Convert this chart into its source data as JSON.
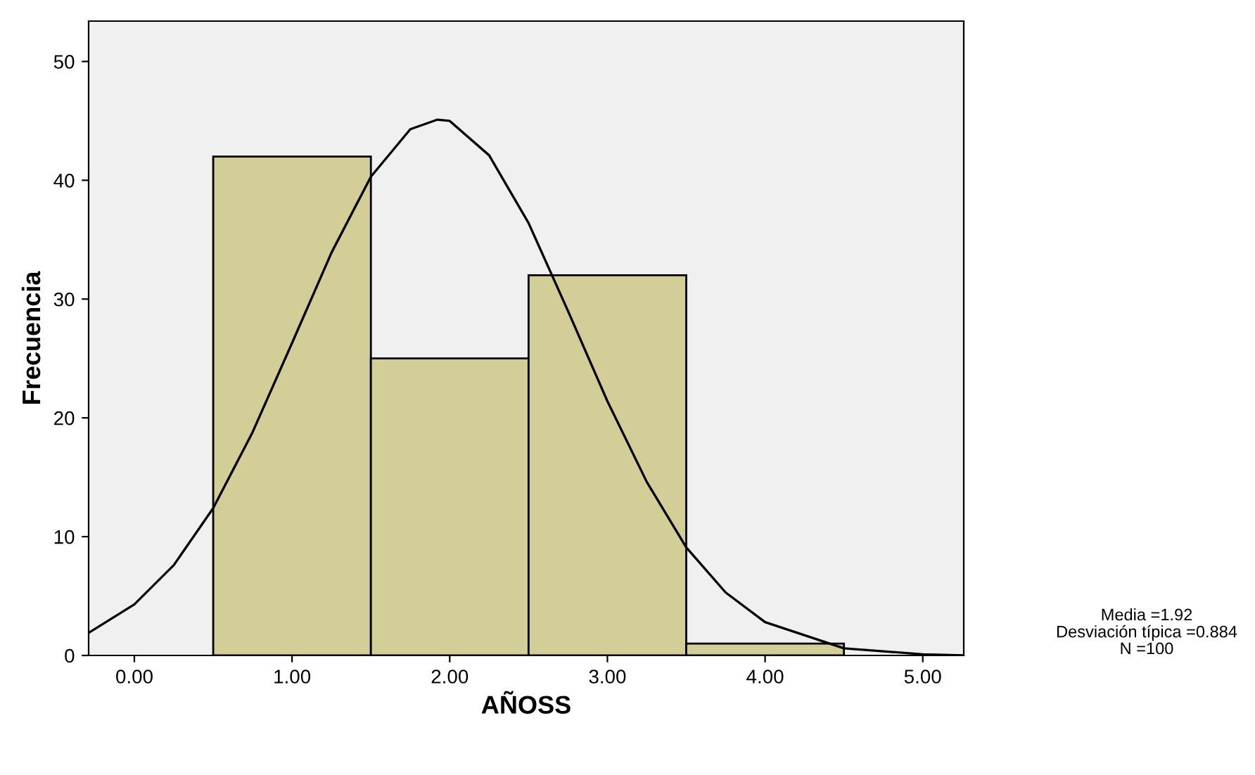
{
  "chart_data": {
    "type": "histogram",
    "xlabel": "AÑOSS",
    "ylabel": "Frecuencia",
    "bins": [
      0.5,
      1.5,
      2.5,
      3.5,
      4.5
    ],
    "values": [
      42,
      25,
      32,
      1
    ],
    "color": "#d3ce97",
    "series": [
      {
        "type": "line",
        "color": "#000000",
        "x": [
          -0.29,
          0,
          0.25,
          0.5,
          0.75,
          1.0,
          1.25,
          1.5,
          1.75,
          1.92,
          2.0,
          2.25,
          2.5,
          2.75,
          3.0,
          3.25,
          3.5,
          3.75,
          4.0,
          4.5,
          5.0,
          5.26
        ],
        "values": [
          1.9,
          4.3,
          7.6,
          12.4,
          18.8,
          26.3,
          33.9,
          40.3,
          44.3,
          45.1,
          45.0,
          42.1,
          36.4,
          29.0,
          21.4,
          14.6,
          9.1,
          5.3,
          2.8,
          0.6,
          0.1,
          0.0
        ]
      }
    ],
    "xlim": [
      -0.29,
      5.26
    ],
    "ylim": [
      0,
      53.4
    ],
    "xticks": [
      {
        "value": 0,
        "label": "0.00"
      },
      {
        "value": 1,
        "label": "1.00"
      },
      {
        "value": 2,
        "label": "2.00"
      },
      {
        "value": 3,
        "label": "3.00"
      },
      {
        "value": 4,
        "label": "4.00"
      },
      {
        "value": 5,
        "label": "5.00"
      }
    ],
    "yticks": [
      0,
      10,
      20,
      30,
      40,
      50
    ],
    "annotations": [
      "Media =1.92",
      "Desviación típica =0.884",
      "N =100"
    ]
  }
}
